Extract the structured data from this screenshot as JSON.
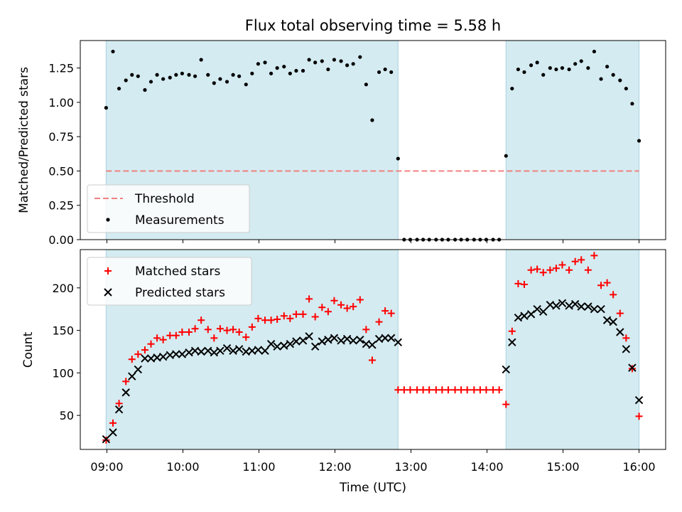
{
  "chart_data": {
    "type": "scatter",
    "title": "Flux total observing time = 5.58 h",
    "xlabel": "Time (UTC)",
    "x_tick_labels": [
      "09:00",
      "10:00",
      "11:00",
      "12:00",
      "13:00",
      "14:00",
      "15:00",
      "16:00"
    ],
    "x_tick_hours": [
      9,
      10,
      11,
      12,
      13,
      14,
      15,
      16
    ],
    "xlim_hours": [
      8.65,
      16.35
    ],
    "observing_windows_hours": [
      [
        8.99,
        12.83
      ],
      [
        14.25,
        16.0
      ]
    ],
    "colors": {
      "window": "#d4ebf1",
      "threshold": "#f08080",
      "matched": "#ff0000",
      "predicted": "#000000",
      "measurement": "#000000"
    },
    "panels": [
      {
        "name": "ratio",
        "ylabel": "Matched/Predicted stars",
        "ylim": [
          0,
          1.45
        ],
        "y_ticks": [
          "0.00",
          "0.25",
          "0.50",
          "0.75",
          "1.00",
          "1.25"
        ],
        "y_tick_values": [
          0,
          0.25,
          0.5,
          0.75,
          1.0,
          1.25
        ],
        "threshold": 0.5,
        "legend": {
          "position": "lower-left",
          "entries": [
            "Threshold",
            "Measurements"
          ]
        },
        "series": [
          {
            "name": "Measurements",
            "marker": "dot",
            "x": [
              8.99,
              9.08,
              9.16,
              9.25,
              9.33,
              9.41,
              9.5,
              9.58,
              9.66,
              9.74,
              9.83,
              9.91,
              9.99,
              10.08,
              10.16,
              10.24,
              10.33,
              10.41,
              10.49,
              10.58,
              10.66,
              10.74,
              10.83,
              10.91,
              10.99,
              11.08,
              11.16,
              11.24,
              11.33,
              11.41,
              11.49,
              11.58,
              11.66,
              11.74,
              11.83,
              11.91,
              11.99,
              12.08,
              12.16,
              12.24,
              12.33,
              12.41,
              12.49,
              12.58,
              12.66,
              12.74,
              12.83,
              12.91,
              12.99,
              13.08,
              13.16,
              13.24,
              13.33,
              13.41,
              13.49,
              13.58,
              13.66,
              13.74,
              13.83,
              13.91,
              13.99,
              14.08,
              14.16,
              14.25,
              14.33,
              14.41,
              14.49,
              14.58,
              14.66,
              14.74,
              14.83,
              14.91,
              14.99,
              15.08,
              15.16,
              15.24,
              15.33,
              15.41,
              15.5,
              15.58,
              15.66,
              15.75,
              15.83,
              15.91,
              16.0
            ],
            "y": [
              0.96,
              1.37,
              1.1,
              1.16,
              1.2,
              1.19,
              1.09,
              1.15,
              1.2,
              1.17,
              1.18,
              1.2,
              1.21,
              1.2,
              1.19,
              1.31,
              1.2,
              1.14,
              1.17,
              1.15,
              1.2,
              1.19,
              1.13,
              1.21,
              1.28,
              1.29,
              1.21,
              1.25,
              1.26,
              1.21,
              1.23,
              1.23,
              1.31,
              1.29,
              1.3,
              1.24,
              1.31,
              1.3,
              1.27,
              1.28,
              1.33,
              1.13,
              0.87,
              1.22,
              1.24,
              1.22,
              0.59,
              0,
              0,
              0,
              0,
              0,
              0,
              0,
              0,
              0,
              0,
              0,
              0,
              0,
              0,
              0,
              0,
              0.61,
              1.1,
              1.24,
              1.22,
              1.27,
              1.29,
              1.2,
              1.25,
              1.24,
              1.25,
              1.24,
              1.28,
              1.3,
              1.25,
              1.37,
              1.17,
              1.26,
              1.2,
              1.16,
              1.1,
              0.99,
              0.72
            ]
          }
        ]
      },
      {
        "name": "counts",
        "ylabel": "Count",
        "ylim": [
          10,
          245
        ],
        "y_ticks": [
          "50",
          "100",
          "150",
          "200"
        ],
        "y_tick_values": [
          50,
          100,
          150,
          200
        ],
        "legend": {
          "position": "upper-left",
          "entries": [
            "Matched stars",
            "Predicted stars"
          ]
        },
        "series": [
          {
            "name": "Matched stars",
            "marker": "plus",
            "x": [
              8.99,
              9.08,
              9.16,
              9.25,
              9.33,
              9.41,
              9.5,
              9.58,
              9.66,
              9.74,
              9.83,
              9.91,
              9.99,
              10.08,
              10.16,
              10.24,
              10.33,
              10.41,
              10.49,
              10.58,
              10.66,
              10.74,
              10.83,
              10.91,
              10.99,
              11.08,
              11.16,
              11.24,
              11.33,
              11.41,
              11.49,
              11.58,
              11.66,
              11.74,
              11.83,
              11.91,
              11.99,
              12.08,
              12.16,
              12.24,
              12.33,
              12.41,
              12.49,
              12.58,
              12.66,
              12.74,
              12.83,
              12.91,
              12.99,
              13.08,
              13.16,
              13.24,
              13.33,
              13.41,
              13.49,
              13.58,
              13.66,
              13.74,
              13.83,
              13.91,
              13.99,
              14.08,
              14.16,
              14.25,
              14.33,
              14.41,
              14.49,
              14.58,
              14.66,
              14.74,
              14.83,
              14.91,
              14.99,
              15.08,
              15.16,
              15.24,
              15.33,
              15.41,
              15.5,
              15.58,
              15.66,
              15.75,
              15.83,
              15.91,
              16.0
            ],
            "y": [
              21,
              41,
              64,
              90,
              116,
              122,
              127,
              134,
              141,
              139,
              144,
              144,
              148,
              148,
              152,
              162,
              151,
              141,
              152,
              150,
              151,
              148,
              142,
              154,
              164,
              162,
              162,
              163,
              167,
              164,
              169,
              169,
              187,
              166,
              177,
              172,
              185,
              180,
              176,
              178,
              186,
              151,
              115,
              160,
              173,
              170,
              80,
              80,
              80,
              80,
              80,
              80,
              80,
              80,
              80,
              80,
              80,
              80,
              80,
              80,
              80,
              80,
              80,
              63,
              149,
              205,
              204,
              221,
              222,
              218,
              221,
              223,
              227,
              221,
              231,
              233,
              221,
              238,
              203,
              206,
              192,
              170,
              141,
              105,
              49
            ]
          },
          {
            "name": "Predicted stars",
            "marker": "x",
            "x": [
              8.99,
              9.08,
              9.16,
              9.25,
              9.33,
              9.41,
              9.5,
              9.58,
              9.66,
              9.74,
              9.83,
              9.91,
              9.99,
              10.08,
              10.16,
              10.24,
              10.33,
              10.41,
              10.49,
              10.58,
              10.66,
              10.74,
              10.83,
              10.91,
              10.99,
              11.08,
              11.16,
              11.24,
              11.33,
              11.41,
              11.49,
              11.58,
              11.66,
              11.74,
              11.83,
              11.91,
              11.99,
              12.08,
              12.16,
              12.24,
              12.33,
              12.41,
              12.49,
              12.58,
              12.66,
              12.74,
              12.83,
              14.25,
              14.33,
              14.41,
              14.49,
              14.58,
              14.66,
              14.74,
              14.83,
              14.91,
              14.99,
              15.08,
              15.16,
              15.24,
              15.33,
              15.41,
              15.5,
              15.58,
              15.66,
              15.75,
              15.83,
              15.91,
              16.0
            ],
            "y": [
              22,
              30,
              57,
              77,
              96,
              104,
              117,
              117,
              118,
              119,
              121,
              122,
              122,
              124,
              126,
              125,
              126,
              124,
              126,
              129,
              126,
              128,
              125,
              126,
              127,
              126,
              134,
              131,
              132,
              134,
              137,
              138,
              143,
              131,
              137,
              139,
              141,
              138,
              140,
              138,
              139,
              134,
              133,
              140,
              141,
              141,
              136,
              104,
              136,
              165,
              167,
              169,
              175,
              172,
              180,
              179,
              182,
              179,
              181,
              178,
              178,
              175,
              175,
              162,
              160,
              148,
              128,
              106,
              68
            ]
          }
        ]
      }
    ]
  }
}
